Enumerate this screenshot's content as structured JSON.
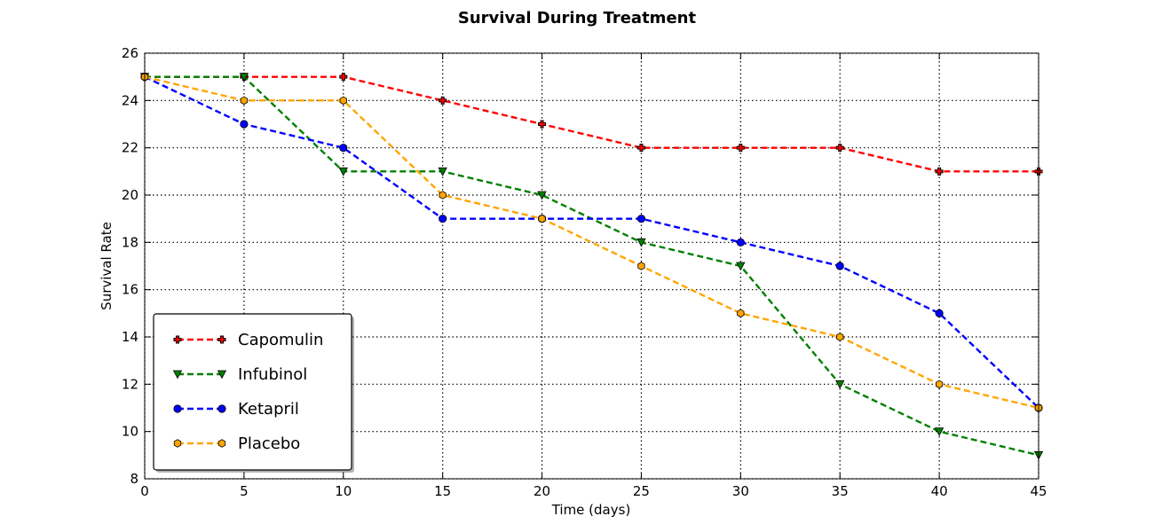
{
  "chart_data": {
    "type": "line",
    "title": "Survival During Treatment",
    "xlabel": "Time (days)",
    "ylabel": "Survival Rate",
    "xlim": [
      0,
      45
    ],
    "ylim": [
      8,
      26
    ],
    "xticks": [
      0,
      5,
      10,
      15,
      20,
      25,
      30,
      35,
      40,
      45
    ],
    "yticks": [
      8,
      10,
      12,
      14,
      16,
      18,
      20,
      22,
      24,
      26
    ],
    "grid": true,
    "grid_style": "dotted",
    "legend_position": "lower-left",
    "x": [
      0,
      5,
      10,
      15,
      20,
      25,
      30,
      35,
      40,
      45
    ],
    "series": [
      {
        "name": "Capomulin",
        "color": "#ff0000",
        "marker": "plus",
        "values": [
          25,
          25,
          25,
          24,
          23,
          22,
          22,
          22,
          21,
          21
        ]
      },
      {
        "name": "Infubinol",
        "color": "#008000",
        "marker": "triangle-down",
        "values": [
          25,
          25,
          21,
          21,
          20,
          18,
          17,
          12,
          10,
          9
        ]
      },
      {
        "name": "Ketapril",
        "color": "#0000ff",
        "marker": "circle",
        "values": [
          25,
          23,
          22,
          19,
          19,
          19,
          18,
          17,
          15,
          11
        ]
      },
      {
        "name": "Placebo",
        "color": "#ffa500",
        "marker": "hexagon",
        "values": [
          25,
          24,
          24,
          20,
          19,
          17,
          15,
          14,
          12,
          11
        ]
      }
    ]
  }
}
